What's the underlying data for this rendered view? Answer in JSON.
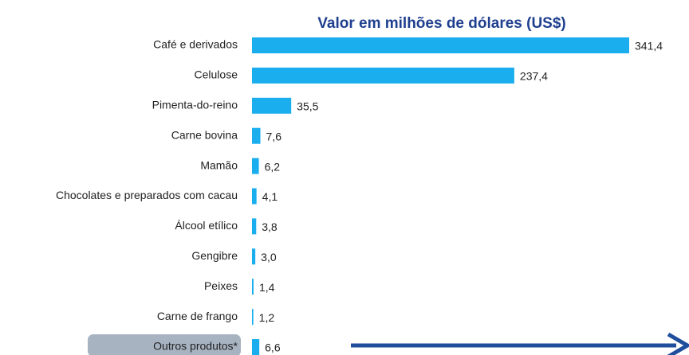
{
  "chart_data": {
    "type": "bar",
    "orientation": "horizontal",
    "title": "Valor em milhões de dólares (US$)",
    "categories": [
      "Café e derivados",
      "Celulose",
      "Pimenta-do-reino",
      "Carne bovina",
      "Mamão",
      "Chocolates e preparados com cacau",
      "Álcool etílico",
      "Gengibre",
      "Peixes",
      "Carne de frango",
      "Outros produtos*"
    ],
    "values": [
      341.4,
      237.4,
      35.5,
      7.6,
      6.2,
      4.1,
      3.8,
      3.0,
      1.4,
      1.2,
      6.6
    ],
    "value_labels": [
      "341,4",
      "237,4",
      "35,5",
      "7,6",
      "6,2",
      "4,1",
      "3,8",
      "3,0",
      "1,4",
      "1,2",
      "6,6"
    ],
    "color": "#1aaeee"
  }
}
